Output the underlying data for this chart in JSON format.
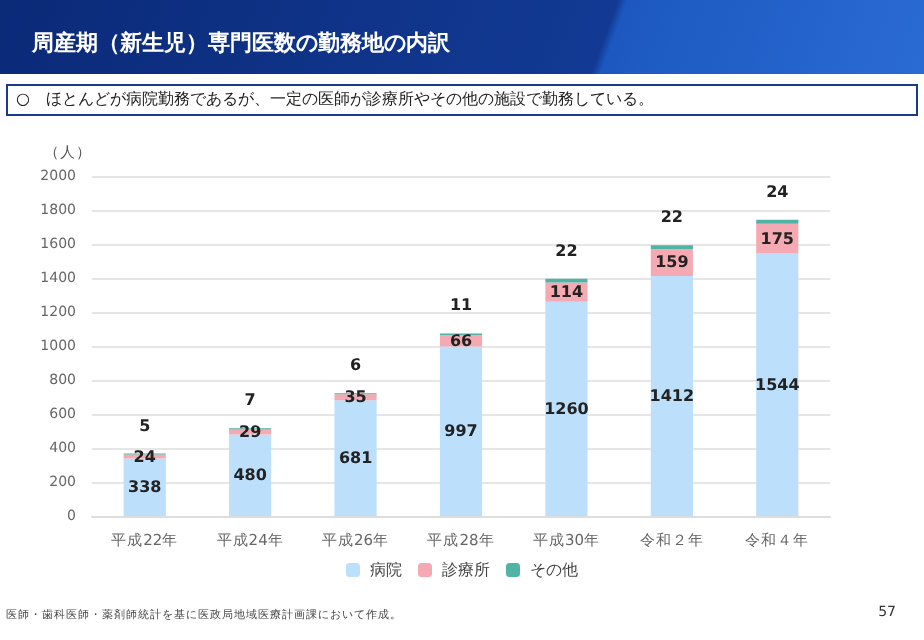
{
  "chart_data": {
    "type": "bar",
    "title": "周産期（新生児）専門医数の勤務地の内訳",
    "subtitle": "○　ほとんどが病院勤務であるが、一定の医師が診療所やその他の施設で勤務している。",
    "ylabel": "（人）",
    "categories": [
      "平成22年",
      "平成24年",
      "平成26年",
      "平成28年",
      "平成30年",
      "令和２年",
      "令和４年"
    ],
    "series": [
      {
        "name": "病院",
        "color": "#bcdffb",
        "values": [
          338,
          480,
          681,
          997,
          1260,
          1412,
          1544
        ]
      },
      {
        "name": "診療所",
        "color": "#f5a9b2",
        "values": [
          24,
          29,
          35,
          66,
          114,
          159,
          175
        ]
      },
      {
        "name": "その他",
        "color": "#4fb3a6",
        "values": [
          5,
          7,
          6,
          11,
          22,
          22,
          24
        ]
      }
    ],
    "stacked": true,
    "data_labels": true,
    "ylim": [
      0,
      2000
    ],
    "yticks": [
      0,
      200,
      400,
      600,
      800,
      1000,
      1200,
      1400,
      1600,
      1800,
      2000
    ],
    "grid": "y",
    "legend": "bottom",
    "annotations": [
      "医師・歯科医師・薬剤師統計を基に医政局地域医療計画課において作成。",
      "57"
    ]
  }
}
